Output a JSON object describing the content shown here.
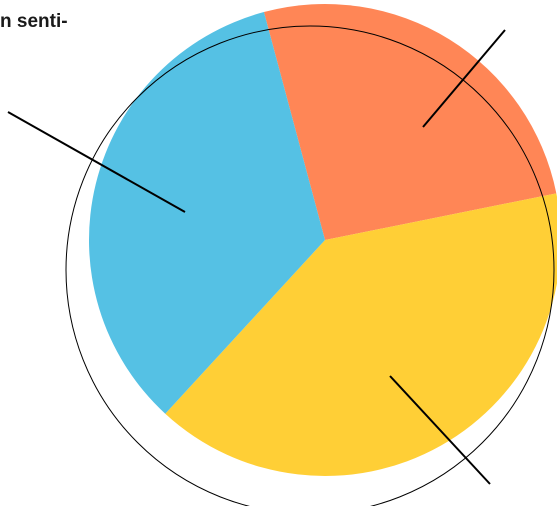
{
  "header": {
    "title_fragment": "n senti-"
  },
  "chart_data": {
    "type": "pie",
    "categories": [
      "",
      "",
      ""
    ],
    "values": [
      26,
      40,
      34
    ],
    "colors": [
      "#ff8656",
      "#ffcf36",
      "#55c1e4"
    ],
    "title": "",
    "legend": "none"
  }
}
